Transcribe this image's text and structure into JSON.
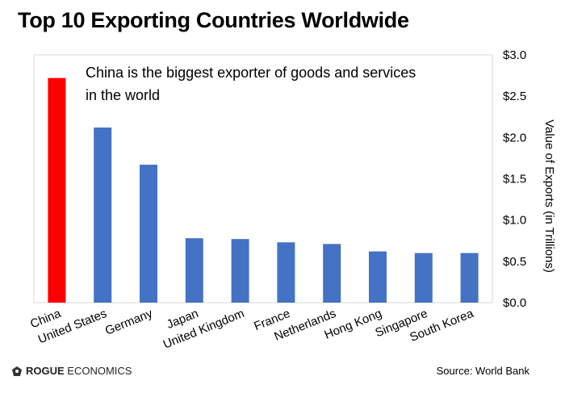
{
  "title": "Top 10 Exporting Countries Worldwide",
  "annotation": "China is the biggest exporter of goods and services in the world",
  "annotation_lines": [
    "China is the biggest exporter of goods and services",
    "in the world"
  ],
  "brand": {
    "name_strong": "ROGUE",
    "name_rest": "ECONOMICS"
  },
  "source": "Source: World Bank",
  "colors": {
    "highlight": "#ff0000",
    "bar": "#4472c4",
    "frame": "#d9d9d9"
  },
  "chart_data": {
    "type": "bar",
    "categories": [
      "China",
      "United States",
      "Germany",
      "Japan",
      "United Kingdom",
      "France",
      "Netherlands",
      "Hong Kong",
      "Singapore",
      "South Korea"
    ],
    "values": [
      2.72,
      2.12,
      1.67,
      0.78,
      0.77,
      0.73,
      0.71,
      0.62,
      0.6,
      0.6
    ],
    "highlight_index": 0,
    "ylabel": "Value of Exports (in Trillions)",
    "ylim": [
      0,
      3.0
    ],
    "yticks": [
      "$0.0",
      "$0.5",
      "$1.0",
      "$1.5",
      "$2.0",
      "$2.5",
      "$3.0"
    ],
    "y_axis_side": "right",
    "grid": false
  }
}
